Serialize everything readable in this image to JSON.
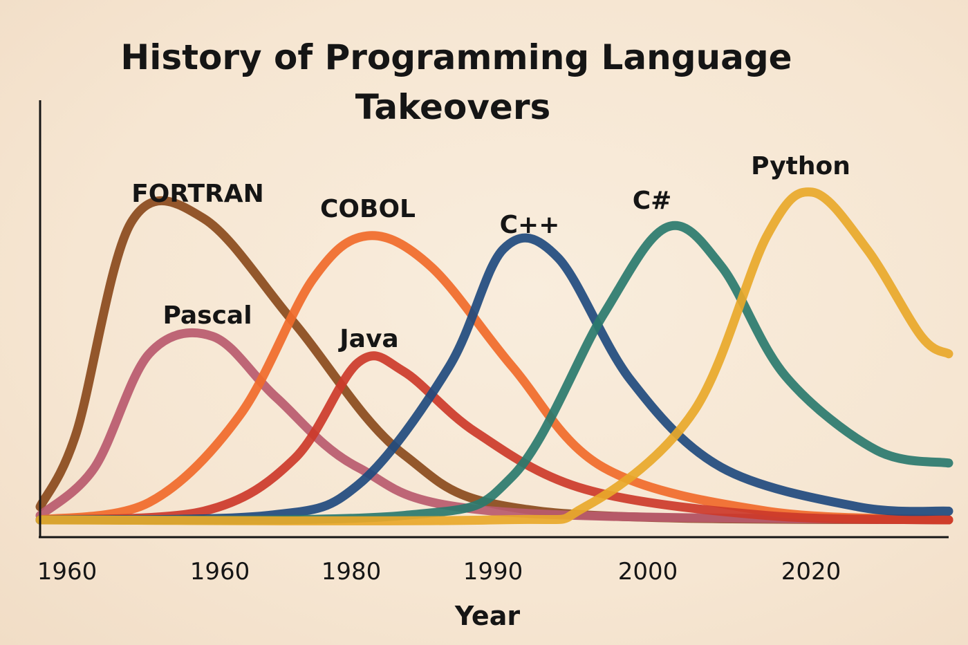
{
  "chart_data": {
    "type": "line",
    "title_lines": [
      "History of Programming Language",
      "Takeovers"
    ],
    "xlabel": "Year",
    "ylabel": "",
    "ylim": [
      0,
      100
    ],
    "ticks": [
      "1960",
      "1960",
      "1980",
      "1990",
      "2000",
      "2020"
    ],
    "grid": false,
    "series": [
      {
        "name": "FORTRAN",
        "color": "#8a4a1c",
        "points": [
          [
            0,
            3
          ],
          [
            4,
            20
          ],
          [
            10,
            68
          ],
          [
            18,
            69
          ],
          [
            28,
            45
          ],
          [
            40,
            15
          ],
          [
            55,
            2
          ],
          [
            100,
            0
          ]
        ]
      },
      {
        "name": "Pascal",
        "color": "#b85a6e",
        "points": [
          [
            0,
            1
          ],
          [
            6,
            12
          ],
          [
            12,
            38
          ],
          [
            19,
            42
          ],
          [
            26,
            28
          ],
          [
            35,
            12
          ],
          [
            50,
            2
          ],
          [
            100,
            0
          ]
        ]
      },
      {
        "name": "COBOL",
        "color": "#f06a2a",
        "points": [
          [
            0,
            0
          ],
          [
            12,
            4
          ],
          [
            22,
            24
          ],
          [
            30,
            55
          ],
          [
            36,
            65
          ],
          [
            43,
            58
          ],
          [
            52,
            35
          ],
          [
            62,
            12
          ],
          [
            80,
            2
          ],
          [
            100,
            0
          ]
        ]
      },
      {
        "name": "Java",
        "color": "#cc3a2a",
        "points": [
          [
            0,
            0
          ],
          [
            18,
            2
          ],
          [
            28,
            14
          ],
          [
            35,
            36
          ],
          [
            40,
            34
          ],
          [
            48,
            20
          ],
          [
            60,
            7
          ],
          [
            80,
            1
          ],
          [
            100,
            0
          ]
        ]
      },
      {
        "name": "C++",
        "color": "#1f4a7e",
        "points": [
          [
            0,
            0
          ],
          [
            25,
            1
          ],
          [
            35,
            8
          ],
          [
            45,
            35
          ],
          [
            51,
            62
          ],
          [
            57,
            60
          ],
          [
            65,
            32
          ],
          [
            75,
            12
          ],
          [
            90,
            3
          ],
          [
            100,
            2
          ]
        ]
      },
      {
        "name": "C#",
        "color": "#2a7a6e",
        "points": [
          [
            0,
            0
          ],
          [
            40,
            1
          ],
          [
            52,
            10
          ],
          [
            62,
            47
          ],
          [
            69,
            67
          ],
          [
            75,
            58
          ],
          [
            82,
            33
          ],
          [
            92,
            16
          ],
          [
            100,
            13
          ]
        ]
      },
      {
        "name": "Python",
        "color": "#e8a82a",
        "points": [
          [
            0,
            0
          ],
          [
            50,
            0
          ],
          [
            60,
            3
          ],
          [
            72,
            25
          ],
          [
            80,
            65
          ],
          [
            85,
            75
          ],
          [
            91,
            62
          ],
          [
            97,
            42
          ],
          [
            100,
            38
          ]
        ]
      }
    ]
  }
}
